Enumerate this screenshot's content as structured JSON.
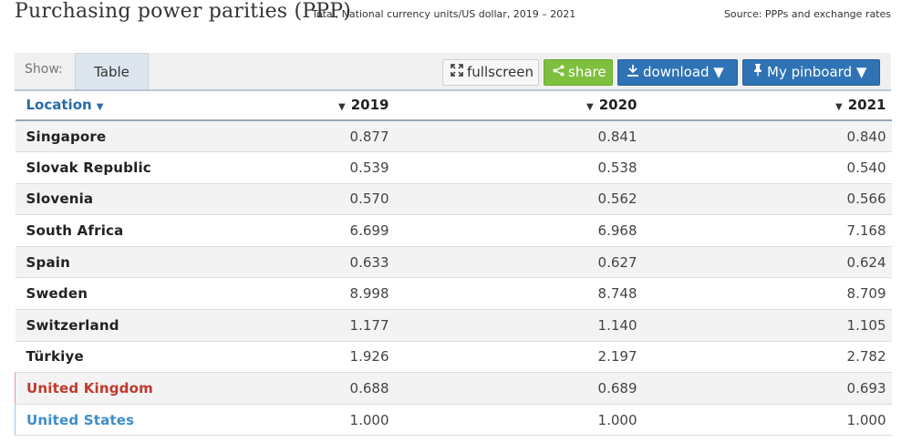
{
  "header": {
    "title": "Purchasing power parities (PPP)",
    "subtitle": "Total, National currency units/US dollar, 2019 – 2021",
    "source": "Source: PPPs and exchange rates"
  },
  "toolbar": {
    "show_label": "Show:",
    "view_tab": "Table",
    "fullscreen_label": "fullscreen",
    "share_label": "share",
    "download_label": "download ▼",
    "pinboard_label": "My pinboard ▼"
  },
  "colors": {
    "highlight_red": "#c0392b",
    "highlight_blue": "#3d8ec9",
    "share_green": "#7fbf3f",
    "action_blue": "#2f73b4"
  },
  "table": {
    "columns": [
      "Location",
      "2019",
      "2020",
      "2021"
    ],
    "rows": [
      {
        "location": "Singapore",
        "v2019": "0.877",
        "v2020": "0.841",
        "v2021": "0.840"
      },
      {
        "location": "Slovak Republic",
        "v2019": "0.539",
        "v2020": "0.538",
        "v2021": "0.540"
      },
      {
        "location": "Slovenia",
        "v2019": "0.570",
        "v2020": "0.562",
        "v2021": "0.566"
      },
      {
        "location": "South Africa",
        "v2019": "6.699",
        "v2020": "6.968",
        "v2021": "7.168"
      },
      {
        "location": "Spain",
        "v2019": "0.633",
        "v2020": "0.627",
        "v2021": "0.624"
      },
      {
        "location": "Sweden",
        "v2019": "8.998",
        "v2020": "8.748",
        "v2021": "8.709"
      },
      {
        "location": "Switzerland",
        "v2019": "1.177",
        "v2020": "1.140",
        "v2021": "1.105"
      },
      {
        "location": "Türkiye",
        "v2019": "1.926",
        "v2020": "2.197",
        "v2021": "2.782"
      },
      {
        "location": "United Kingdom",
        "v2019": "0.688",
        "v2020": "0.689",
        "v2021": "0.693",
        "highlight": "red"
      },
      {
        "location": "United States",
        "v2019": "1.000",
        "v2020": "1.000",
        "v2021": "1.000",
        "highlight": "blue"
      }
    ]
  }
}
